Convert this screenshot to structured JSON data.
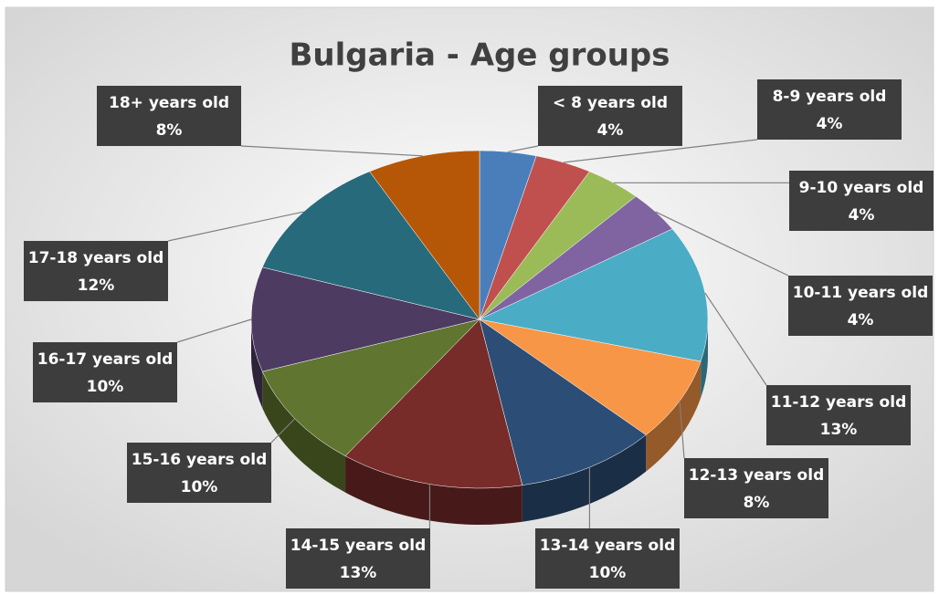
{
  "chart_data": {
    "type": "pie",
    "title": "Bulgaria - Age groups",
    "categories": [
      "< 8 years old",
      "8-9 years old",
      "9-10 years old",
      "10-11 years old",
      "11-12 years old",
      "12-13 years old",
      "13-14 years old",
      "14-15 years old",
      "15-16 years old",
      "16-17 years old",
      "17-18 years old",
      "18+ years old"
    ],
    "values": [
      4,
      4,
      4,
      4,
      13,
      8,
      10,
      13,
      10,
      10,
      12,
      8
    ],
    "value_labels": [
      "4%",
      "4%",
      "4%",
      "4%",
      "13%",
      "8%",
      "10%",
      "13%",
      "10%",
      "10%",
      "12%",
      "8%"
    ],
    "colors": [
      "#4a7ebb",
      "#c0504d",
      "#9bbb59",
      "#8064a2",
      "#4bacc6",
      "#f79646",
      "#2c4d75",
      "#772c2a",
      "#5f7530",
      "#4d3b62",
      "#276a7c",
      "#b65708"
    ]
  }
}
